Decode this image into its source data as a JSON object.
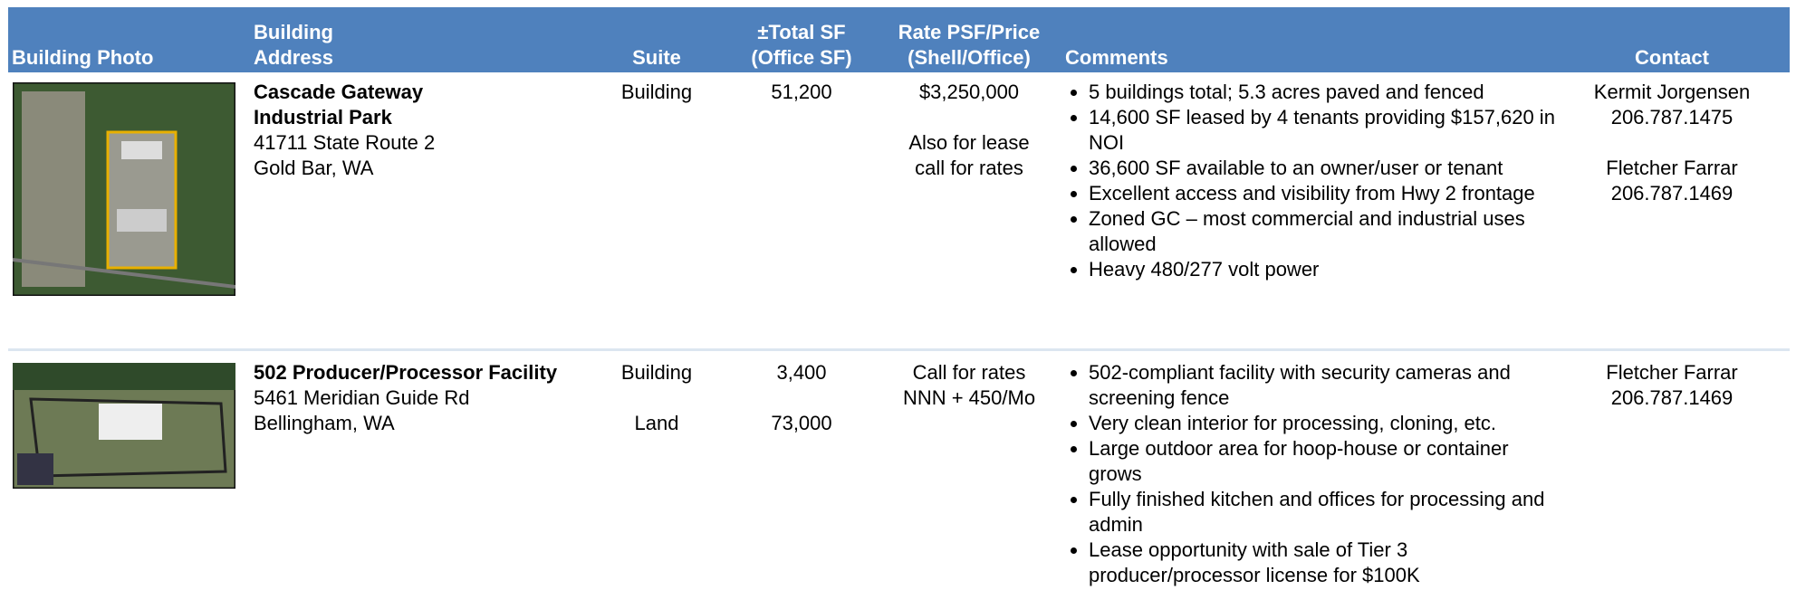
{
  "header": {
    "columns": [
      {
        "lines": [
          "Building Photo"
        ],
        "align": "left"
      },
      {
        "lines": [
          "Building",
          "Address"
        ],
        "align": "left"
      },
      {
        "lines": [
          "Suite"
        ],
        "align": "center"
      },
      {
        "lines": [
          "±Total SF",
          "(Office SF)"
        ],
        "align": "center"
      },
      {
        "lines": [
          "Rate PSF/Price",
          "(Shell/Office)"
        ],
        "align": "center"
      },
      {
        "lines": [
          "Comments"
        ],
        "align": "left"
      },
      {
        "lines": [
          "Contact"
        ],
        "align": "center"
      }
    ]
  },
  "rows": [
    {
      "name": [
        "Cascade Gateway",
        "Industrial Park"
      ],
      "address": [
        "41711 State Route 2",
        "Gold Bar, WA"
      ],
      "suite": [
        [
          "Building"
        ]
      ],
      "sf": [
        [
          "51,200"
        ]
      ],
      "rate": [
        [
          "$3,250,000"
        ],
        [
          "Also for lease",
          "call for rates"
        ]
      ],
      "comments": [
        "5 buildings total; 5.3 acres paved and fenced",
        "14,600 SF leased by 4 tenants providing $157,620 in NOI",
        "36,600 SF available to an owner/user or tenant",
        "Excellent access and visibility from Hwy 2 frontage",
        "Zoned GC – most commercial and industrial uses allowed",
        "Heavy 480/277 volt power"
      ],
      "contacts": [
        [
          "Kermit Jorgensen",
          "206.787.1475"
        ],
        [
          "Fletcher Farrar",
          "206.787.1469"
        ]
      ]
    },
    {
      "name": [
        "502 Producer/Processor Facility"
      ],
      "address": [
        "5461 Meridian Guide Rd",
        "Bellingham, WA"
      ],
      "suite": [
        [
          "Building"
        ],
        [
          "Land"
        ]
      ],
      "sf": [
        [
          "3,400"
        ],
        [
          "73,000"
        ]
      ],
      "rate": [
        [
          "Call for rates",
          "NNN + 450/Mo"
        ]
      ],
      "comments": [
        "502-compliant facility with security cameras and screening fence",
        "Very clean interior for processing, cloning, etc.",
        "Large outdoor area for hoop-house or container grows",
        "Fully finished kitchen and offices for processing and admin",
        "Lease opportunity with sale of Tier 3 producer/processor license for $100K"
      ],
      "contacts": [
        [
          "Fletcher Farrar",
          "206.787.1469"
        ]
      ]
    }
  ]
}
